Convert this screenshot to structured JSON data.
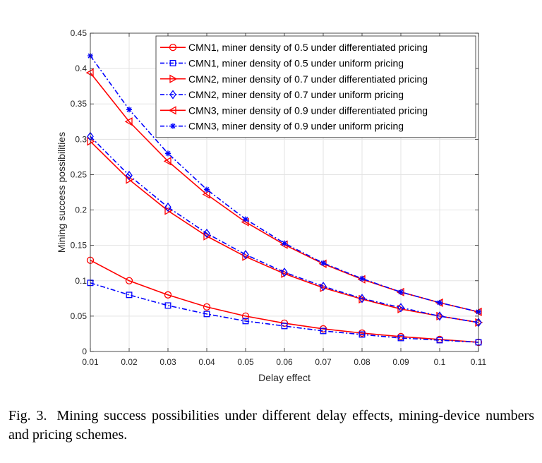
{
  "chart_data": {
    "type": "line",
    "xlabel": "Delay effect",
    "ylabel": "Mining success possibilities",
    "xlim": [
      0.01,
      0.11
    ],
    "ylim": [
      0,
      0.45
    ],
    "xticks": [
      "0.01",
      "0.02",
      "0.03",
      "0.04",
      "0.05",
      "0.06",
      "0.07",
      "0.08",
      "0.09",
      "0.1",
      "0.11"
    ],
    "yticks": [
      "0",
      "0.05",
      "0.1",
      "0.15",
      "0.2",
      "0.25",
      "0.3",
      "0.35",
      "0.4",
      "0.45"
    ],
    "x": [
      0.01,
      0.02,
      0.03,
      0.04,
      0.05,
      0.06,
      0.07,
      0.08,
      0.09,
      0.1,
      0.11
    ],
    "grid": true,
    "legend_position": "top-right",
    "series": [
      {
        "name": "CMN1, miner density of 0.5 under differentiated pricing",
        "color": "#ff0000",
        "dash": "solid",
        "marker": "circle",
        "values": [
          0.129,
          0.1,
          0.08,
          0.063,
          0.05,
          0.04,
          0.032,
          0.026,
          0.021,
          0.017,
          0.013
        ]
      },
      {
        "name": "CMN1, miner density of 0.5 under uniform pricing",
        "color": "#0000ff",
        "dash": "dashdot",
        "marker": "square",
        "values": [
          0.097,
          0.08,
          0.065,
          0.053,
          0.043,
          0.036,
          0.029,
          0.024,
          0.019,
          0.016,
          0.013
        ]
      },
      {
        "name": "CMN2, miner density of 0.7 under differentiated pricing",
        "color": "#ff0000",
        "dash": "solid",
        "marker": "triangle-right",
        "values": [
          0.297,
          0.243,
          0.199,
          0.163,
          0.134,
          0.11,
          0.09,
          0.074,
          0.06,
          0.05,
          0.041
        ]
      },
      {
        "name": "CMN2, miner density of 0.7 under uniform pricing",
        "color": "#0000ff",
        "dash": "dashdot",
        "marker": "diamond",
        "values": [
          0.304,
          0.249,
          0.204,
          0.167,
          0.137,
          0.112,
          0.092,
          0.075,
          0.062,
          0.05,
          0.041
        ]
      },
      {
        "name": "CMN3, miner density of 0.9 under differentiated pricing",
        "color": "#ff0000",
        "dash": "solid",
        "marker": "triangle-left",
        "values": [
          0.394,
          0.325,
          0.269,
          0.222,
          0.183,
          0.151,
          0.124,
          0.102,
          0.084,
          0.069,
          0.056
        ]
      },
      {
        "name": "CMN3, miner density of 0.9 under uniform pricing",
        "color": "#0000ff",
        "dash": "dashdot",
        "marker": "asterisk",
        "values": [
          0.418,
          0.342,
          0.28,
          0.229,
          0.187,
          0.153,
          0.125,
          0.103,
          0.084,
          0.069,
          0.056
        ]
      }
    ]
  },
  "caption": {
    "label": "Fig. 3.",
    "text": "Mining success possibilities under different delay effects, mining-device numbers and pricing schemes."
  }
}
